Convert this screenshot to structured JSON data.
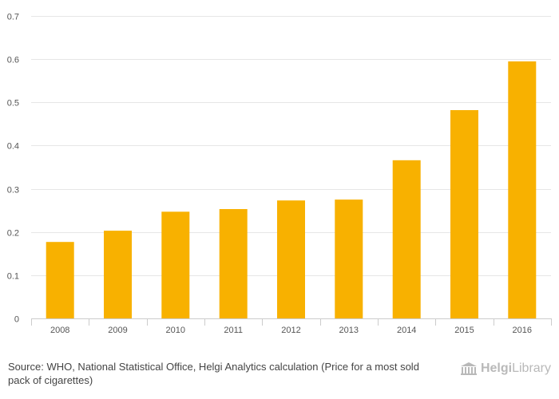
{
  "chart_data": {
    "type": "bar",
    "categories": [
      "2008",
      "2009",
      "2010",
      "2011",
      "2012",
      "2013",
      "2014",
      "2015",
      "2016"
    ],
    "values": [
      0.177,
      0.203,
      0.247,
      0.253,
      0.273,
      0.275,
      0.366,
      0.482,
      0.595
    ],
    "title": "",
    "xlabel": "",
    "ylabel": "",
    "ylim": [
      0,
      0.7
    ],
    "yticks": [
      "0",
      "0.1",
      "0.2",
      "0.3",
      "0.4",
      "0.5",
      "0.6",
      "0.7"
    ],
    "grid": true,
    "bar_color": "#f8b100"
  },
  "footer": {
    "source_label": "Source:",
    "source_text": "WHO, National Statistical Office, Helgi Analytics calculation (Price for a most sold pack of cigarettes)"
  },
  "logo": {
    "icon": "helgi-library-building-icon",
    "text_bold": "Helgi",
    "text_regular": "Library",
    "color": "#b9b9b9"
  }
}
